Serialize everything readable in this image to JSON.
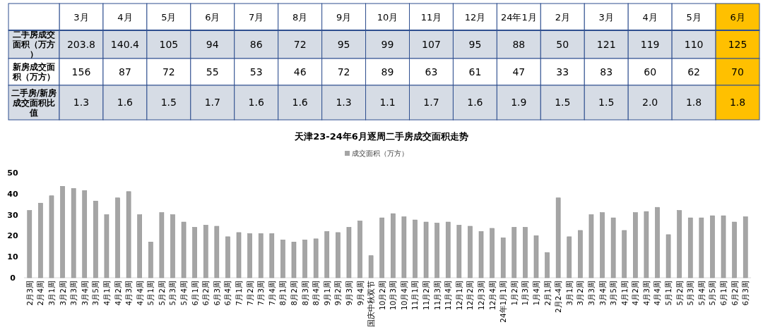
{
  "chart_data": [
    {
      "type": "heatmap",
      "categories": [
        "3月",
        "4月",
        "5月",
        "6月",
        "7月",
        "8月",
        "9月",
        "10月",
        "11月",
        "12月",
        "24年1月",
        "2月",
        "3月",
        "4月",
        "5月",
        "6月"
      ],
      "y_categories": [
        "二手房成交面积（万方）",
        "新房成交面积（万方）",
        "二手房/新房成交面积比值"
      ],
      "cells": [
        [
          203.8,
          140.4,
          105,
          94,
          86,
          72,
          95,
          99,
          107,
          95,
          88,
          50,
          121,
          119,
          110,
          125
        ],
        [
          156,
          87,
          72,
          55,
          53,
          46,
          72,
          89,
          63,
          61,
          47,
          33,
          83,
          60,
          62,
          70
        ],
        [
          1.3,
          1.6,
          1.5,
          1.7,
          1.6,
          1.6,
          1.3,
          1.1,
          1.7,
          1.6,
          1.9,
          1.5,
          1.5,
          2.0,
          1.8,
          1.8
        ]
      ],
      "cell_labels": [
        [
          "203.8",
          "140.4",
          "105",
          "94",
          "86",
          "72",
          "95",
          "99",
          "107",
          "95",
          "88",
          "50",
          "121",
          "119",
          "110",
          "125"
        ],
        [
          "156",
          "87",
          "72",
          "55",
          "53",
          "46",
          "72",
          "89",
          "63",
          "61",
          "47",
          "33",
          "83",
          "60",
          "62",
          "70"
        ],
        [
          "1.3",
          "1.6",
          "1.5",
          "1.7",
          "1.6",
          "1.6",
          "1.3",
          "1.1",
          "1.7",
          "1.6",
          "1.9",
          "1.5",
          "1.5",
          "2.0",
          "1.8",
          "1.8"
        ]
      ]
    },
    {
      "type": "bar",
      "title": "天津23-24年6月逐周二手房成交面积走势",
      "categories": [
        "2月3周",
        "2月4周",
        "3月1周",
        "3月2周",
        "3月3周",
        "3月4周",
        "3月5周",
        "4月1周",
        "4月2周",
        "4月3周",
        "4月4周",
        "5月1周",
        "5月2周",
        "5月3周",
        "5月4周",
        "6月1周",
        "6月2周",
        "6月3周",
        "6月4周",
        "7月1周",
        "7月2周",
        "7月3周",
        "7月4周",
        "8月1周",
        "8月2周",
        "8月3周",
        "8月4周",
        "9月1周",
        "9月2周",
        "9月3周",
        "9月4周",
        "国庆中秋双节",
        "10月2周",
        "10月3周",
        "10月4周",
        "11月1周",
        "11月2周",
        "11月3周",
        "11月4周",
        "12月1周",
        "12月2周",
        "12月3周",
        "12月4周",
        "24年1月1周",
        "1月2周",
        "1月3周",
        "1月4周",
        "2月1周",
        "2月2-4周",
        "3月1周",
        "3月2周",
        "3月3周",
        "3月4周",
        "3月5周",
        "4月1周",
        "4月2周",
        "4月3周",
        "4月4周",
        "5月1周",
        "5月2周",
        "5月3周",
        "5月4周",
        "5月5周",
        "6月1周",
        "6月2周",
        "6月3周"
      ],
      "series": [
        {
          "name": "成交面积（万方）",
          "color": "#a5a5a5",
          "values": [
            32,
            35.5,
            39,
            43.5,
            42.5,
            41.5,
            36.5,
            30,
            38,
            41,
            30,
            17,
            31,
            30,
            26.5,
            24,
            25,
            24.5,
            19.5,
            21.5,
            21,
            21,
            21,
            18,
            17,
            18,
            18.5,
            22,
            21.5,
            24,
            27,
            10.5,
            28.5,
            30.5,
            29,
            27.5,
            26.5,
            26,
            26.5,
            25,
            24.5,
            22,
            23.5,
            19,
            24,
            24,
            20,
            12,
            38,
            19.5,
            22.5,
            30,
            31,
            28.5,
            22.5,
            31,
            31.5,
            33.5,
            20.5,
            32,
            28.5,
            28.5,
            29.5,
            29.5,
            26.5,
            29
          ]
        }
      ],
      "ylim": [
        0,
        50
      ],
      "yticks": [
        0,
        10,
        20,
        30,
        40,
        50
      ],
      "legend": "top"
    }
  ]
}
